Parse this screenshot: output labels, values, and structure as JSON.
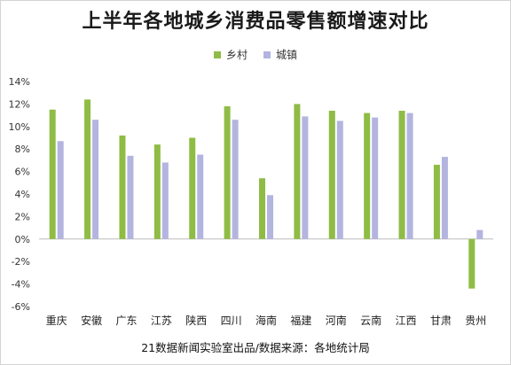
{
  "title": "上半年各地城乡消费品零售额增速对比",
  "source": "21数据新闻实验室出品/数据来源：各地统计局",
  "chart_data": {
    "type": "bar",
    "title": "上半年各地城乡消费品零售额增速对比",
    "categories": [
      "重庆",
      "安徽",
      "广东",
      "江苏",
      "陕西",
      "四川",
      "海南",
      "福建",
      "河南",
      "云南",
      "江西",
      "甘肃",
      "贵州"
    ],
    "series": [
      {
        "name": "乡村",
        "color": "#8fbc45",
        "values": [
          11.5,
          12.4,
          9.2,
          8.4,
          9.0,
          11.8,
          5.4,
          12.0,
          11.4,
          11.2,
          11.4,
          6.6,
          -4.4
        ]
      },
      {
        "name": "城镇",
        "color": "#b4b4e0",
        "values": [
          8.7,
          10.6,
          7.4,
          6.8,
          7.5,
          10.6,
          3.9,
          10.9,
          10.5,
          10.8,
          11.2,
          7.3,
          0.8
        ]
      }
    ],
    "ylim": [
      -6,
      14
    ],
    "yticks": [
      "-6%",
      "-4%",
      "-2%",
      "0%",
      "2%",
      "4%",
      "6%",
      "8%",
      "10%",
      "12%",
      "14%"
    ],
    "ytick_values": [
      -6,
      -4,
      -2,
      0,
      2,
      4,
      6,
      8,
      10,
      12,
      14
    ],
    "grid": false,
    "legend": "top-center"
  }
}
